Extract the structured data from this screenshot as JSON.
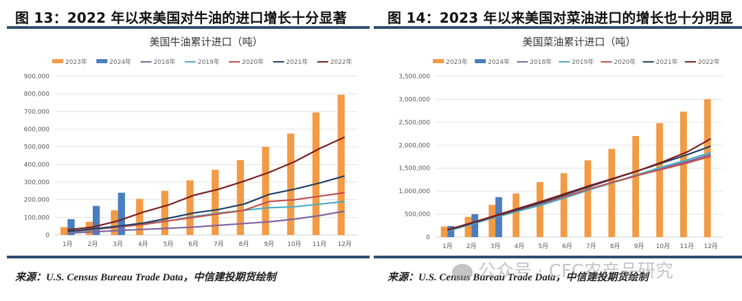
{
  "panels": [
    {
      "fig_title": "图 13：2022 年以来美国对牛油的进口增长十分显著",
      "source": "来源：U.S. Census Bureau Trade Data，中信建投期货绘制"
    },
    {
      "fig_title": "图 14：2023 年以来美国对菜油进口的增长也十分明显",
      "source": "来源：U.S. Census Bureau Trade Data，中信建投期货绘制"
    }
  ],
  "watermark": "公众号 · CFC农产品研究",
  "colors": {
    "2023年": "#f39a44",
    "2024年": "#4a7ebf",
    "2018年": "#8064a2",
    "2019年": "#4bacc6",
    "2020年": "#c0504d",
    "2021年": "#1f3f66",
    "2022年": "#7a1f1f"
  },
  "chart_data": [
    {
      "type": "bar+line",
      "title": "美国牛油累计进口（吨）",
      "xlabel": "",
      "ylabel": "",
      "categories": [
        "1月",
        "2月",
        "3月",
        "4月",
        "5月",
        "6月",
        "7月",
        "8月",
        "9月",
        "10月",
        "11月",
        "12月"
      ],
      "ylim": [
        0,
        900000
      ],
      "yticks": [
        0,
        100000,
        200000,
        300000,
        400000,
        500000,
        600000,
        700000,
        800000,
        900000
      ],
      "ytick_labels": [
        "0",
        "100,000",
        "200,000",
        "300,000",
        "400,000",
        "500,000",
        "600,000",
        "700,000",
        "800,000",
        "900,000"
      ],
      "grid": true,
      "legend": "top",
      "bar_series": [
        {
          "name": "2023年",
          "values": [
            45000,
            75000,
            140000,
            205000,
            250000,
            310000,
            370000,
            425000,
            500000,
            575000,
            695000,
            795000
          ]
        },
        {
          "name": "2024年",
          "values": [
            90000,
            165000,
            240000,
            null,
            null,
            null,
            null,
            null,
            null,
            null,
            null,
            null
          ]
        }
      ],
      "line_series": [
        {
          "name": "2018年",
          "values": [
            10000,
            18000,
            25000,
            32000,
            38000,
            45000,
            55000,
            65000,
            75000,
            90000,
            110000,
            135000
          ]
        },
        {
          "name": "2019年",
          "values": [
            15000,
            30000,
            45000,
            65000,
            80000,
            105000,
            125000,
            140000,
            155000,
            160000,
            175000,
            190000
          ]
        },
        {
          "name": "2020年",
          "values": [
            18000,
            32000,
            45000,
            60000,
            80000,
            100000,
            120000,
            140000,
            190000,
            200000,
            220000,
            240000
          ]
        },
        {
          "name": "2021年",
          "values": [
            20000,
            35000,
            50000,
            68000,
            95000,
            125000,
            145000,
            175000,
            230000,
            260000,
            295000,
            335000
          ]
        },
        {
          "name": "2022年",
          "values": [
            30000,
            45000,
            80000,
            130000,
            170000,
            225000,
            260000,
            305000,
            355000,
            415000,
            490000,
            555000
          ]
        }
      ]
    },
    {
      "type": "bar+line",
      "title": "美国菜油累计进口（吨）",
      "xlabel": "",
      "ylabel": "",
      "categories": [
        "1月",
        "2月",
        "3月",
        "4月",
        "5月",
        "6月",
        "7月",
        "8月",
        "9月",
        "10月",
        "11月",
        "12月"
      ],
      "ylim": [
        0,
        3500000
      ],
      "yticks": [
        0,
        500000,
        1000000,
        1500000,
        2000000,
        2500000,
        3000000,
        3500000
      ],
      "ytick_labels": [
        "0",
        "500,000",
        "1,000,000",
        "1,500,000",
        "2,000,000",
        "2,500,000",
        "3,000,000",
        "3,500,000"
      ],
      "grid": true,
      "legend": "top",
      "bar_series": [
        {
          "name": "2023年",
          "values": [
            230000,
            440000,
            700000,
            950000,
            1200000,
            1390000,
            1670000,
            1920000,
            2200000,
            2480000,
            2730000,
            3000000
          ]
        },
        {
          "name": "2024年",
          "values": [
            240000,
            500000,
            870000,
            null,
            null,
            null,
            null,
            null,
            null,
            null,
            null,
            null
          ]
        }
      ],
      "line_series": [
        {
          "name": "2018年",
          "values": [
            140000,
            290000,
            440000,
            580000,
            720000,
            880000,
            1050000,
            1200000,
            1350000,
            1500000,
            1640000,
            1800000
          ]
        },
        {
          "name": "2019年",
          "values": [
            130000,
            280000,
            430000,
            570000,
            710000,
            870000,
            1040000,
            1200000,
            1370000,
            1530000,
            1680000,
            1840000
          ]
        },
        {
          "name": "2020年",
          "values": [
            150000,
            300000,
            450000,
            600000,
            750000,
            900000,
            1060000,
            1210000,
            1350000,
            1480000,
            1610000,
            1760000
          ]
        },
        {
          "name": "2021年",
          "values": [
            150000,
            300000,
            460000,
            610000,
            770000,
            940000,
            1110000,
            1280000,
            1450000,
            1620000,
            1790000,
            1980000
          ]
        },
        {
          "name": "2022年",
          "values": [
            160000,
            310000,
            470000,
            630000,
            790000,
            960000,
            1130000,
            1290000,
            1450000,
            1640000,
            1850000,
            2140000
          ]
        }
      ]
    }
  ]
}
